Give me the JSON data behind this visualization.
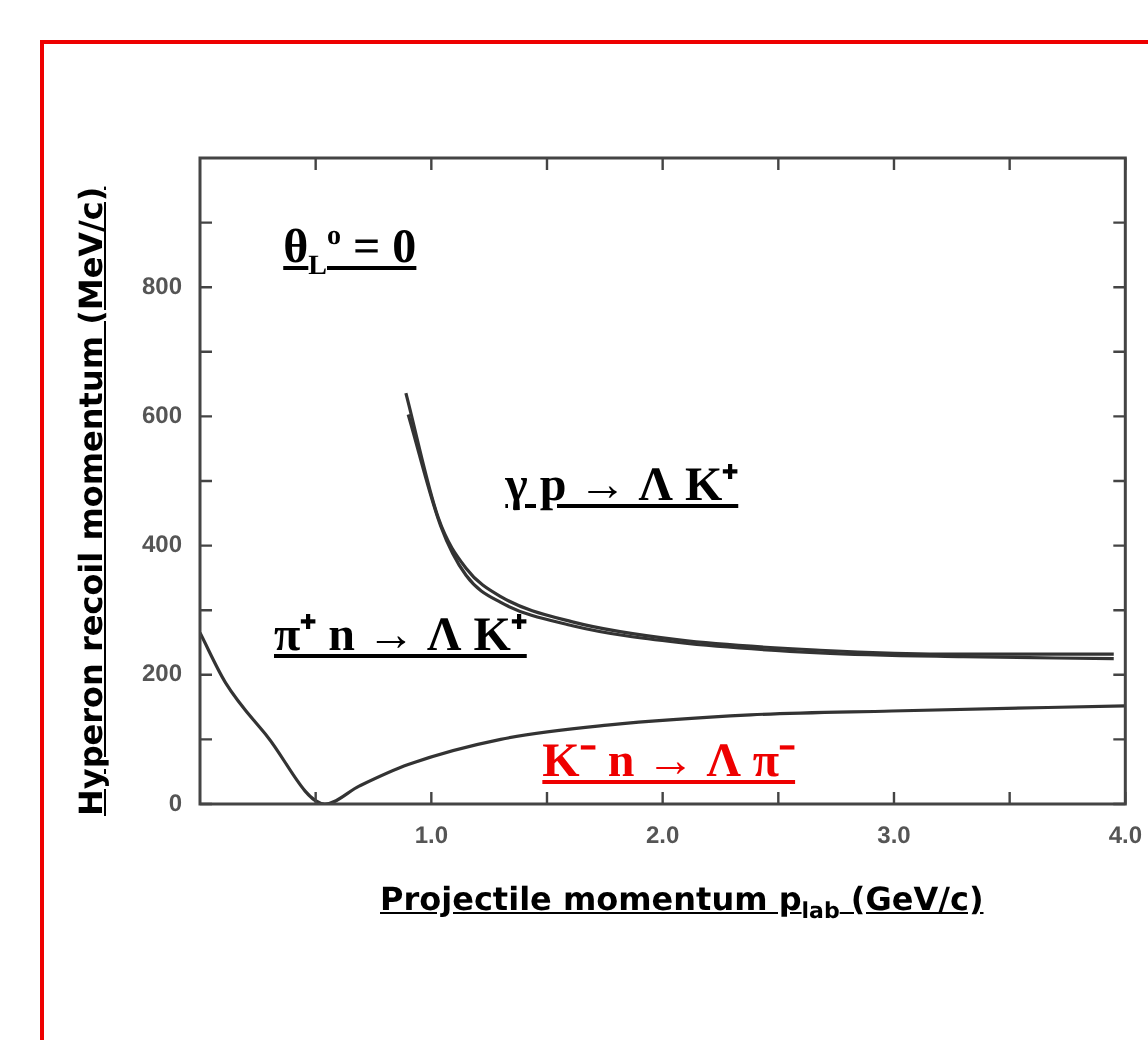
{
  "chart_data": {
    "type": "line",
    "xlabel": "Projectile momentum p$_{lab}$ (GeV/c)",
    "ylabel": "Hyperon recoil momentum (MeV/c)",
    "xlim": [
      0,
      4.0
    ],
    "ylim": [
      0,
      1000
    ],
    "xticks": [
      {
        "value": 0.5,
        "label": null
      },
      {
        "value": 1.0,
        "label": "1.0"
      },
      {
        "value": 1.5,
        "label": null
      },
      {
        "value": 2.0,
        "label": "2.0"
      },
      {
        "value": 2.5,
        "label": null
      },
      {
        "value": 3.0,
        "label": "3.0"
      },
      {
        "value": 3.5,
        "label": null
      },
      {
        "value": 4.0,
        "label": "4.0"
      }
    ],
    "yticks": [
      0,
      {
        "value": 100,
        "label": null
      },
      200,
      {
        "value": 300,
        "label": null
      },
      400,
      {
        "value": 500,
        "label": null
      },
      600,
      {
        "value": 700,
        "label": null
      },
      800,
      {
        "value": 900,
        "label": null
      }
    ],
    "marker": "none",
    "line_style": "solid",
    "series": [
      {
        "color": "#333333",
        "x": [
          0.89,
          1.03,
          1.15,
          1.3,
          1.61,
          2.07,
          2.68,
          3.3,
          3.95
        ],
        "values": [
          636,
          443,
          365,
          321,
          282,
          254,
          238,
          232,
          232
        ]
      },
      {
        "color": "#333333",
        "x": [
          0.9,
          1.04,
          1.15,
          1.3,
          1.61,
          2.07,
          2.68,
          3.3,
          3.95
        ],
        "values": [
          603,
          431,
          354,
          312,
          276,
          250,
          234,
          228,
          225
        ]
      },
      {
        "color": "#333333",
        "x": [
          0,
          0.11,
          0.29,
          0.54,
          0.69,
          0.9,
          1.3,
          1.76,
          2.38,
          2.99,
          4.0
        ],
        "values": [
          265,
          188,
          105,
          0,
          28,
          61,
          100,
          122,
          138,
          144,
          152
        ]
      }
    ],
    "annotations": [
      "θ$_{L}$$^{o}$ = 0",
      "γ p → Λ K⁺",
      "π⁺ n → Λ K⁺",
      "K⁻ n → Λ π⁻"
    ]
  }
}
